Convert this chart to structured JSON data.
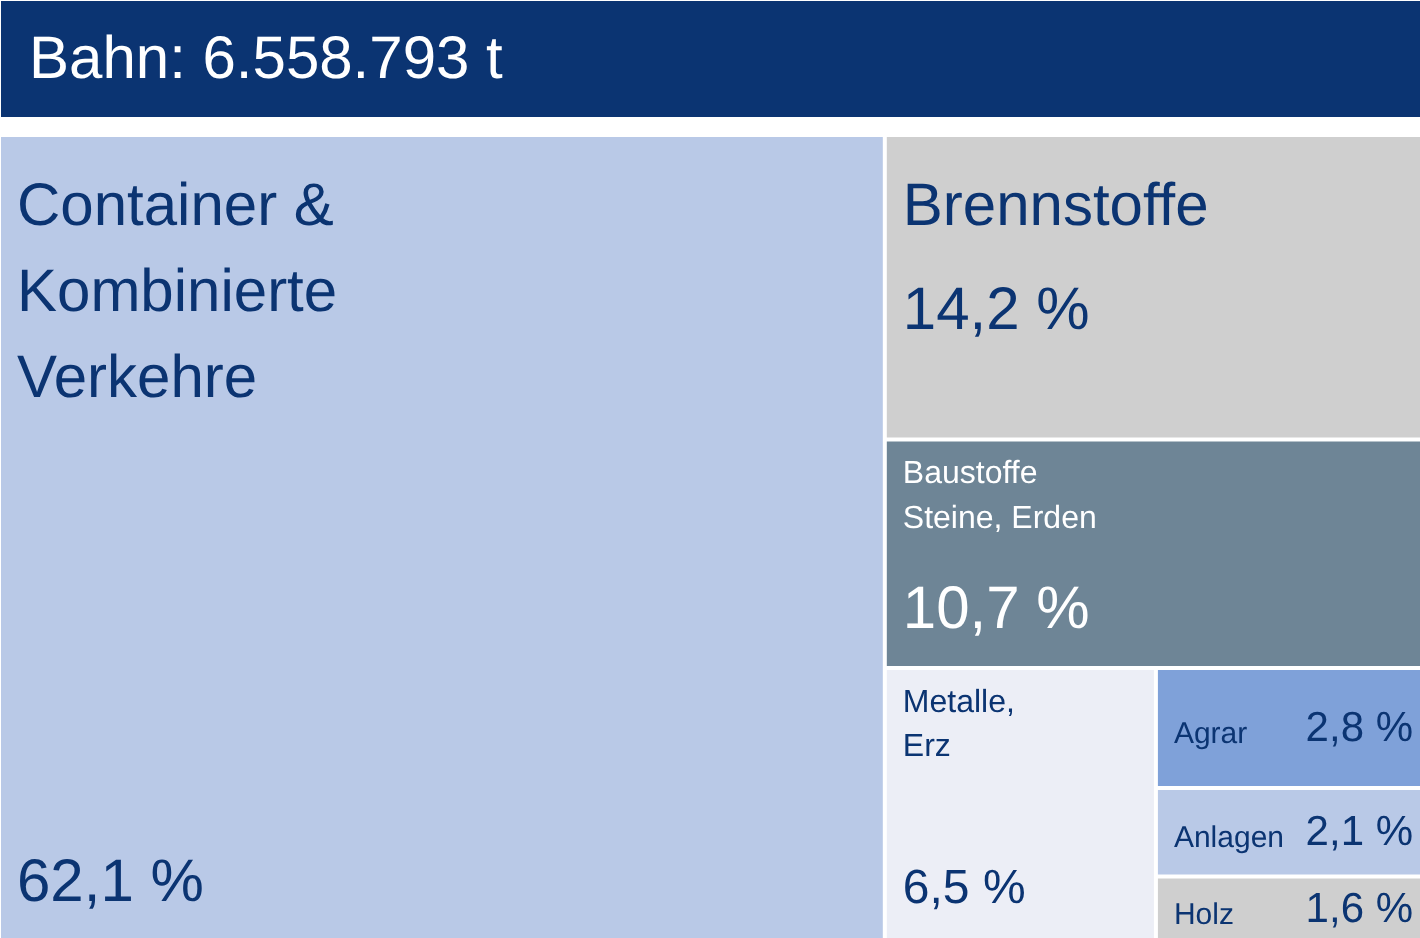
{
  "chart_data": {
    "type": "other",
    "title": "Bahn: 6.558.793 t",
    "categories": [
      "Container &\nKombinierte\nVerkehre",
      "Brennstoffe",
      "Baustoffe\nSteine, Erden",
      "Metalle,\nErz",
      "Agrar",
      "Anlagen",
      "Holz"
    ],
    "values": [
      62.1,
      14.2,
      10.7,
      6.5,
      2.8,
      2.1,
      1.6
    ],
    "value_labels": [
      "62,1 %",
      "14,2 %",
      "10,7 %",
      "6,5 %",
      "2,8 %",
      "2,1 %",
      "1,6 %"
    ],
    "colors": [
      "#b9c9e7",
      "#cfcfcf",
      "#6e8596",
      "#eceef6",
      "#7fa1d9",
      "#b9c9e7",
      "#cfcfcf"
    ]
  }
}
